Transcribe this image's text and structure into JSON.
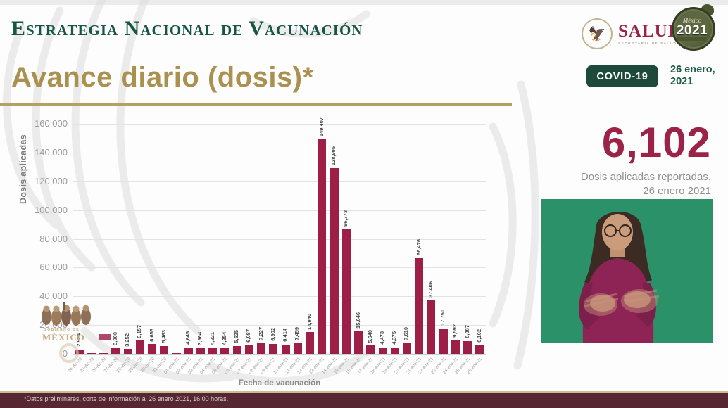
{
  "header": {
    "title": "Estrategia Nacional de Vacunación",
    "subtitle": "Avance diario (dosis)*"
  },
  "logos": {
    "salud": {
      "name": "SALUD",
      "sub": "SECRETARÍA DE SALUD"
    },
    "mexico2021": {
      "label": "México",
      "year": "2021"
    }
  },
  "badges": {
    "covid": "COVID-19",
    "date_line1": "26 enero,",
    "date_line2": "2021"
  },
  "highlight": {
    "value": "6,102",
    "caption_line1": "Dosis aplicadas reportadas,",
    "caption_line2": "26 enero 2021"
  },
  "watermark": {
    "line1": "GOBIERNO DE",
    "line2": "MÉXICO"
  },
  "chart_data": {
    "type": "bar",
    "title": "Avance diario (dosis)*",
    "xlabel": "Fecha de vacunación",
    "ylabel": "Dosis aplicadas",
    "ylim": [
      0,
      160000
    ],
    "ytick_step": 20000,
    "yticks": [
      "0",
      "20,000",
      "40,000",
      "60,000",
      "80,000",
      "100,000",
      "120,000",
      "140,000",
      "160,000"
    ],
    "grid": true,
    "legend": "none",
    "bar_color": "#9e1f45",
    "categories": [
      "24-dic-20",
      "25-dic-20",
      "26-dic-20",
      "27-dic-20",
      "28-dic-20",
      "29-dic-20",
      "30-dic-20",
      "31-dic-20",
      "01-ene-21",
      "02-ene-21",
      "03-ene-21",
      "04-ene-21",
      "05-ene-21",
      "06-ene-21",
      "07-ene-21",
      "08-ene-21",
      "09-ene-21",
      "10-ene-21",
      "11-ene-21",
      "12-ene-21",
      "13-ene-21",
      "14-ene-21",
      "15-ene-21",
      "16-ene-21",
      "17-ene-21",
      "18-ene-21",
      "19-ene-21",
      "20-ene-21",
      "21-ene-21",
      "22-ene-21",
      "23-ene-21",
      "24-ene-21",
      "25-ene-21",
      "26-ene-21"
    ],
    "values": [
      2924,
      0,
      0,
      3900,
      3252,
      9157,
      6653,
      5463,
      0,
      4645,
      3964,
      4221,
      4254,
      5525,
      6087,
      7227,
      6902,
      6414,
      7459,
      14940,
      149407,
      128995,
      86773,
      15646,
      5640,
      4473,
      4375,
      7610,
      66476,
      37406,
      17750,
      9592,
      8887,
      6102
    ],
    "bar_labels": [
      "2,924",
      "",
      "",
      "3,900",
      "3,252",
      "9,157",
      "6,653",
      "5,463",
      "",
      "4,645",
      "3,964",
      "4,221",
      "4,254",
      "5,525",
      "6,087",
      "7,227",
      "6,902",
      "6,414",
      "7,459",
      "14,940",
      "149,407",
      "128,995",
      "86,773",
      "15,646",
      "5,640",
      "4,473",
      "4,375",
      "7,610",
      "66,476",
      "37,406",
      "17,750",
      "9,592",
      "8,887",
      "6,102"
    ]
  },
  "footer": {
    "note": "*Datos preliminares, corte de información al 26 enero 2021, 16:00 horas."
  },
  "colors": {
    "maroon": "#9c2247",
    "dark_green": "#175643",
    "gold": "#b2a065",
    "badge_green": "#1d4a3a",
    "chroma_green": "#2a9168"
  }
}
